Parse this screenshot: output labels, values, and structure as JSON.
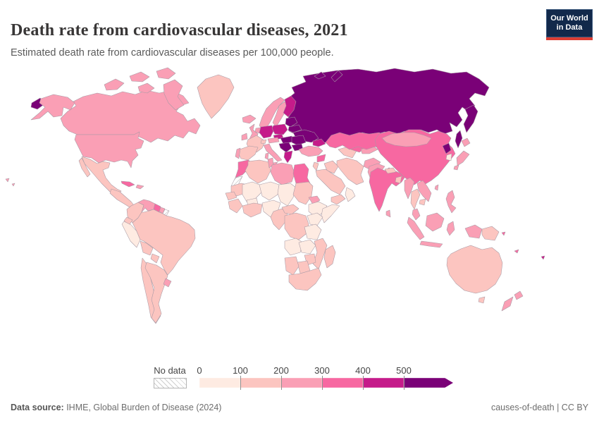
{
  "header": {
    "title": "Death rate from cardiovascular diseases, 2021",
    "subtitle": "Estimated death rate from cardiovascular diseases per 100,000 people.",
    "logo": {
      "line1": "Our World",
      "line2": "in Data"
    }
  },
  "legend": {
    "no_data_label": "No data",
    "ticks": [
      "0",
      "100",
      "200",
      "300",
      "400",
      "500"
    ]
  },
  "footer": {
    "source_label": "Data source:",
    "source_text": " IHME, Global Burden of Disease (2024)",
    "right_text": "causes-of-death | CC BY"
  },
  "colors": {
    "logo_background": "#12294b",
    "logo_accent_red": "#dc3d33",
    "border_stroke": "#a89aa5"
  },
  "chart_data": {
    "type": "choropleth",
    "title": "Death rate from cardiovascular diseases, 2021",
    "unit": "deaths per 100,000 people",
    "projection": "world map",
    "legend_position": "bottom",
    "no_data_pattern": "diagonal-hatch",
    "bins": [
      {
        "label": "0-100",
        "min": 0,
        "max": 100,
        "color": "#feebe2"
      },
      {
        "label": "100-200",
        "min": 100,
        "max": 200,
        "color": "#fcc5c0"
      },
      {
        "label": "200-300",
        "min": 200,
        "max": 300,
        "color": "#fa9fb5"
      },
      {
        "label": "300-400",
        "min": 300,
        "max": 400,
        "color": "#f768a1"
      },
      {
        "label": "400-500",
        "min": 400,
        "max": 500,
        "color": "#c51b8a"
      },
      {
        "label": "500+",
        "min": 500,
        "max": null,
        "color": "#7a0177"
      }
    ],
    "regions": [
      {
        "id": "russia",
        "name": "Russia",
        "bin": 5
      },
      {
        "id": "belarus",
        "name": "Belarus",
        "bin": 5
      },
      {
        "id": "ukraine",
        "name": "Ukraine",
        "bin": 5
      },
      {
        "id": "baltics",
        "name": "Baltic states",
        "bin": 5
      },
      {
        "id": "hungary-slovakia",
        "name": "Hungary / Slovakia",
        "bin": 5
      },
      {
        "id": "romania",
        "name": "Romania",
        "bin": 5
      },
      {
        "id": "bulgaria",
        "name": "Bulgaria",
        "bin": 5
      },
      {
        "id": "balkans",
        "name": "Western Balkans / Serbia",
        "bin": 5
      },
      {
        "id": "north-korea",
        "name": "North Korea",
        "bin": 5
      },
      {
        "id": "germany",
        "name": "Germany",
        "bin": 4
      },
      {
        "id": "poland",
        "name": "Poland",
        "bin": 4
      },
      {
        "id": "czechia",
        "name": "Czechia",
        "bin": 4
      },
      {
        "id": "finland",
        "name": "Finland",
        "bin": 4
      },
      {
        "id": "greece",
        "name": "Greece",
        "bin": 4
      },
      {
        "id": "caucasus",
        "name": "Caucasus",
        "bin": 4
      },
      {
        "id": "fiji",
        "name": "Fiji",
        "bin": 4
      },
      {
        "id": "kazakhstan",
        "name": "Kazakhstan",
        "bin": 3
      },
      {
        "id": "china",
        "name": "China",
        "bin": 3
      },
      {
        "id": "india",
        "name": "India",
        "bin": 3
      },
      {
        "id": "morocco",
        "name": "Morocco",
        "bin": 3
      },
      {
        "id": "egypt",
        "name": "Egypt",
        "bin": 3
      },
      {
        "id": "cuba",
        "name": "Cuba",
        "bin": 3
      },
      {
        "id": "guyana",
        "name": "Guyana",
        "bin": 3
      },
      {
        "id": "syria",
        "name": "Syria",
        "bin": 3
      },
      {
        "id": "uzbekistan",
        "name": "Uzbekistan",
        "bin": 3
      },
      {
        "id": "solomon-islands",
        "name": "Solomon Islands",
        "bin": 3
      },
      {
        "id": "new-caledonia",
        "name": "New Caledonia",
        "bin": 3
      },
      {
        "id": "canada",
        "name": "Canada",
        "bin": 2
      },
      {
        "id": "usa",
        "name": "United States",
        "bin": 2
      },
      {
        "id": "united-kingdom",
        "name": "United Kingdom",
        "bin": 2
      },
      {
        "id": "ireland",
        "name": "Ireland",
        "bin": 2
      },
      {
        "id": "iceland",
        "name": "Iceland",
        "bin": 2
      },
      {
        "id": "norway",
        "name": "Norway",
        "bin": 2
      },
      {
        "id": "sweden",
        "name": "Sweden",
        "bin": 2
      },
      {
        "id": "denmark",
        "name": "Denmark",
        "bin": 2
      },
      {
        "id": "benelux",
        "name": "Netherlands / Belgium",
        "bin": 2
      },
      {
        "id": "portugal",
        "name": "Portugal",
        "bin": 2
      },
      {
        "id": "italy",
        "name": "Italy",
        "bin": 2
      },
      {
        "id": "austria",
        "name": "Austria",
        "bin": 2
      },
      {
        "id": "turkey",
        "name": "Turkey",
        "bin": 2
      },
      {
        "id": "mongolia",
        "name": "Mongolia",
        "bin": 2
      },
      {
        "id": "japan",
        "name": "Japan",
        "bin": 2
      },
      {
        "id": "venezuela",
        "name": "Venezuela",
        "bin": 2
      },
      {
        "id": "suriname",
        "name": "Suriname",
        "bin": 2
      },
      {
        "id": "uruguay",
        "name": "Uruguay",
        "bin": 2
      },
      {
        "id": "hispaniola",
        "name": "Hispaniola",
        "bin": 2
      },
      {
        "id": "myanmar",
        "name": "Myanmar",
        "bin": 2
      },
      {
        "id": "vietnam-laos",
        "name": "Vietnam / Laos",
        "bin": 2
      },
      {
        "id": "malaysia",
        "name": "Malaysia",
        "bin": 2
      },
      {
        "id": "indonesia",
        "name": "Indonesia",
        "bin": 2
      },
      {
        "id": "sri-lanka",
        "name": "Sri Lanka",
        "bin": 2
      },
      {
        "id": "new-zealand",
        "name": "New Zealand",
        "bin": 2
      },
      {
        "id": "afghanistan",
        "name": "Afghanistan",
        "bin": 2
      },
      {
        "id": "pakistan",
        "name": "Pakistan",
        "bin": 2
      },
      {
        "id": "libya",
        "name": "Libya",
        "bin": 2
      },
      {
        "id": "tunisia",
        "name": "Tunisia",
        "bin": 2
      },
      {
        "id": "eritrea",
        "name": "Eritrea / Djibouti",
        "bin": 2
      },
      {
        "id": "taiwan",
        "name": "Taiwan",
        "bin": 2
      },
      {
        "id": "kyrgyz-tajik",
        "name": "Kyrgyzstan / Tajikistan",
        "bin": 2
      },
      {
        "id": "philippines",
        "name": "Philippines",
        "bin": 2
      },
      {
        "id": "greenland",
        "name": "Greenland",
        "bin": 1
      },
      {
        "id": "mexico",
        "name": "Mexico",
        "bin": 1
      },
      {
        "id": "central-america",
        "name": "Central America",
        "bin": 1
      },
      {
        "id": "colombia",
        "name": "Colombia",
        "bin": 1
      },
      {
        "id": "ecuador",
        "name": "Ecuador",
        "bin": 1
      },
      {
        "id": "brazil",
        "name": "Brazil",
        "bin": 1
      },
      {
        "id": "bolivia",
        "name": "Bolivia",
        "bin": 1
      },
      {
        "id": "paraguay",
        "name": "Paraguay",
        "bin": 1
      },
      {
        "id": "chile",
        "name": "Chile",
        "bin": 1
      },
      {
        "id": "argentina",
        "name": "Argentina",
        "bin": 1
      },
      {
        "id": "france",
        "name": "France",
        "bin": 1
      },
      {
        "id": "spain",
        "name": "Spain",
        "bin": 1
      },
      {
        "id": "switzerland",
        "name": "Switzerland",
        "bin": 1
      },
      {
        "id": "algeria",
        "name": "Algeria",
        "bin": 1
      },
      {
        "id": "mauritania",
        "name": "Mauritania",
        "bin": 1
      },
      {
        "id": "senegal",
        "name": "Senegal",
        "bin": 1
      },
      {
        "id": "guinea-region",
        "name": "Guinea region",
        "bin": 1
      },
      {
        "id": "ivory-ghana",
        "name": "Côte d'Ivoire / Ghana",
        "bin": 1
      },
      {
        "id": "sudan",
        "name": "Sudan",
        "bin": 1
      },
      {
        "id": "car",
        "name": "Central African Republic",
        "bin": 1
      },
      {
        "id": "cameroon-gabon",
        "name": "Cameroon / Gabon / Congo",
        "bin": 1
      },
      {
        "id": "drc",
        "name": "DR Congo",
        "bin": 1
      },
      {
        "id": "zimbabwe",
        "name": "Zimbabwe",
        "bin": 1
      },
      {
        "id": "botswana",
        "name": "Botswana",
        "bin": 1
      },
      {
        "id": "namibia",
        "name": "Namibia",
        "bin": 1
      },
      {
        "id": "south-africa",
        "name": "South Africa",
        "bin": 1
      },
      {
        "id": "mozambique",
        "name": "Mozambique / Malawi",
        "bin": 1
      },
      {
        "id": "madagascar",
        "name": "Madagascar",
        "bin": 1
      },
      {
        "id": "iran",
        "name": "Iran",
        "bin": 1
      },
      {
        "id": "iraq",
        "name": "Iraq",
        "bin": 1
      },
      {
        "id": "saudi-arabia",
        "name": "Saudi Arabia",
        "bin": 1
      },
      {
        "id": "yemen",
        "name": "Yemen",
        "bin": 1
      },
      {
        "id": "levant",
        "name": "Israel / Jordan",
        "bin": 1
      },
      {
        "id": "turkmenistan",
        "name": "Turkmenistan",
        "bin": 1
      },
      {
        "id": "nepal",
        "name": "Nepal",
        "bin": 1
      },
      {
        "id": "bangladesh",
        "name": "Bangladesh",
        "bin": 1
      },
      {
        "id": "thailand",
        "name": "Thailand",
        "bin": 1
      },
      {
        "id": "cambodia",
        "name": "Cambodia",
        "bin": 1
      },
      {
        "id": "png",
        "name": "Papua New Guinea",
        "bin": 1
      },
      {
        "id": "australia",
        "name": "Australia",
        "bin": 1
      },
      {
        "id": "peru",
        "name": "Peru",
        "bin": 0
      },
      {
        "id": "mali",
        "name": "Mali",
        "bin": 0
      },
      {
        "id": "niger",
        "name": "Niger",
        "bin": 0
      },
      {
        "id": "chad",
        "name": "Chad",
        "bin": 0
      },
      {
        "id": "nigeria",
        "name": "Nigeria",
        "bin": 0
      },
      {
        "id": "burkina-faso",
        "name": "Burkina Faso",
        "bin": 0
      },
      {
        "id": "ethiopia",
        "name": "Ethiopia",
        "bin": 0
      },
      {
        "id": "somalia",
        "name": "Somalia",
        "bin": 0
      },
      {
        "id": "kenya",
        "name": "Kenya / Uganda",
        "bin": 0
      },
      {
        "id": "tanzania",
        "name": "Tanzania",
        "bin": 0
      },
      {
        "id": "angola",
        "name": "Angola",
        "bin": 0
      },
      {
        "id": "zambia",
        "name": "Zambia",
        "bin": 0
      },
      {
        "id": "oman",
        "name": "Oman",
        "bin": 0
      },
      {
        "id": "south-korea",
        "name": "South Korea",
        "bin": 0
      },
      {
        "id": "western-sahara",
        "name": "Western Sahara",
        "bin": "no_data"
      },
      {
        "id": "french-guiana",
        "name": "French Guiana",
        "bin": "no_data"
      }
    ]
  }
}
